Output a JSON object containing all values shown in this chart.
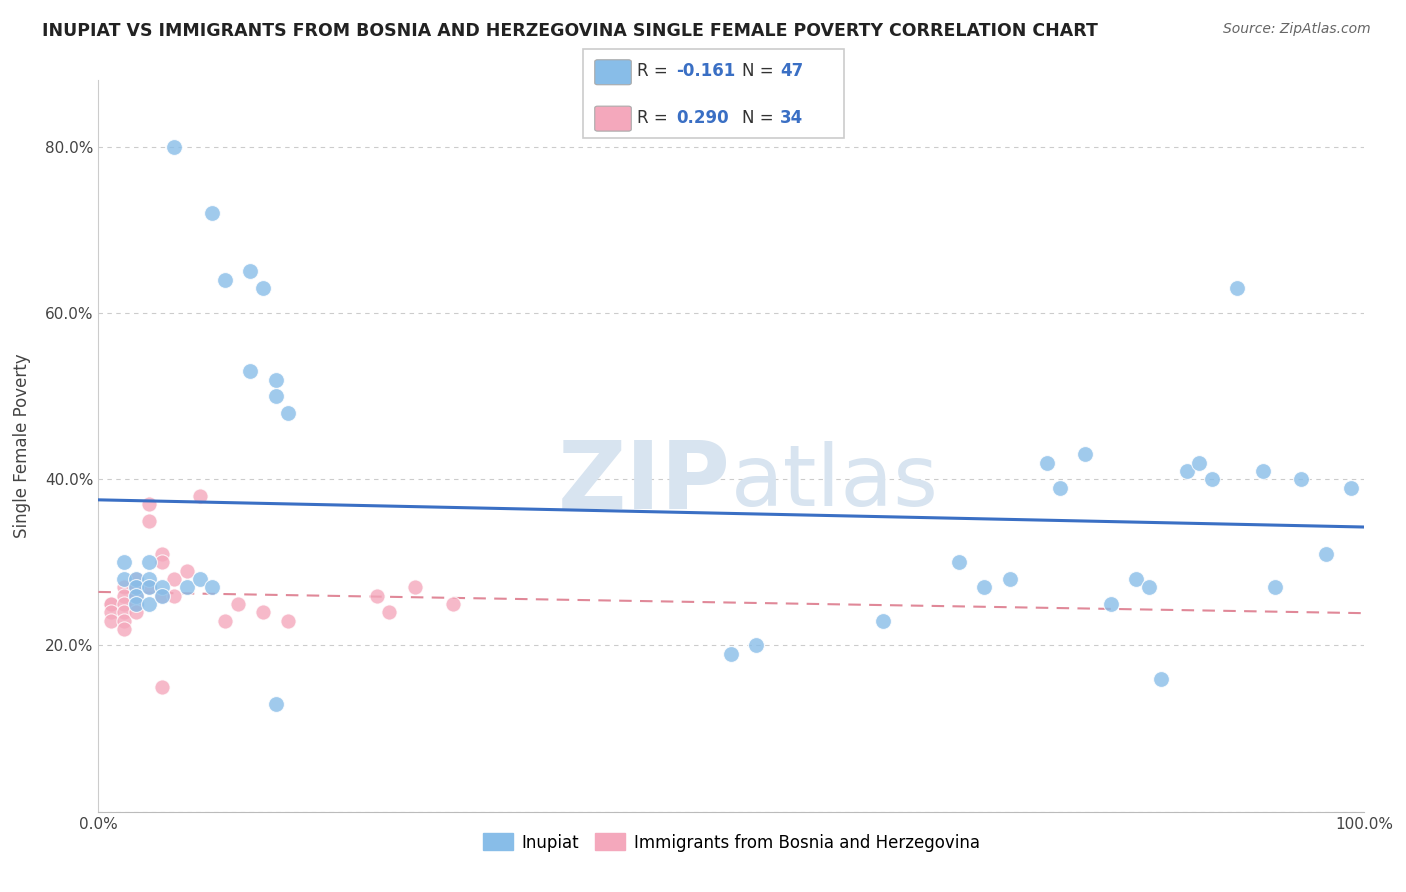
{
  "title": "INUPIAT VS IMMIGRANTS FROM BOSNIA AND HERZEGOVINA SINGLE FEMALE POVERTY CORRELATION CHART",
  "source": "Source: ZipAtlas.com",
  "ylabel": "Single Female Poverty",
  "xlim": [
    0,
    1.0
  ],
  "ylim": [
    0.0,
    0.88
  ],
  "inupiat_color": "#88bde8",
  "bosnia_color": "#f4a8bc",
  "line_inupiat_color": "#3a6fc4",
  "line_bosnia_color": "#e08898",
  "inupiat_x": [
    0.06,
    0.09,
    0.1,
    0.12,
    0.12,
    0.13,
    0.14,
    0.14,
    0.15,
    0.02,
    0.02,
    0.03,
    0.03,
    0.03,
    0.03,
    0.04,
    0.04,
    0.04,
    0.04,
    0.05,
    0.05,
    0.07,
    0.08,
    0.09,
    0.5,
    0.52,
    0.62,
    0.68,
    0.7,
    0.72,
    0.75,
    0.76,
    0.78,
    0.8,
    0.82,
    0.83,
    0.84,
    0.86,
    0.87,
    0.88,
    0.9,
    0.92,
    0.93,
    0.95,
    0.97,
    0.99,
    0.14
  ],
  "inupiat_y": [
    0.8,
    0.72,
    0.64,
    0.65,
    0.53,
    0.63,
    0.52,
    0.5,
    0.48,
    0.3,
    0.28,
    0.28,
    0.27,
    0.26,
    0.25,
    0.3,
    0.28,
    0.27,
    0.25,
    0.27,
    0.26,
    0.27,
    0.28,
    0.27,
    0.19,
    0.2,
    0.23,
    0.3,
    0.27,
    0.28,
    0.42,
    0.39,
    0.43,
    0.25,
    0.28,
    0.27,
    0.16,
    0.41,
    0.42,
    0.4,
    0.63,
    0.41,
    0.27,
    0.4,
    0.31,
    0.39,
    0.13
  ],
  "bosnia_x": [
    0.01,
    0.01,
    0.01,
    0.01,
    0.02,
    0.02,
    0.02,
    0.02,
    0.02,
    0.02,
    0.03,
    0.03,
    0.03,
    0.03,
    0.03,
    0.04,
    0.04,
    0.04,
    0.05,
    0.05,
    0.05,
    0.05,
    0.06,
    0.06,
    0.07,
    0.08,
    0.1,
    0.11,
    0.13,
    0.15,
    0.22,
    0.23,
    0.25,
    0.28
  ],
  "bosnia_y": [
    0.25,
    0.25,
    0.24,
    0.23,
    0.27,
    0.26,
    0.25,
    0.24,
    0.23,
    0.22,
    0.28,
    0.27,
    0.26,
    0.25,
    0.24,
    0.37,
    0.35,
    0.27,
    0.31,
    0.3,
    0.26,
    0.15,
    0.28,
    0.26,
    0.29,
    0.38,
    0.23,
    0.25,
    0.24,
    0.23,
    0.26,
    0.24,
    0.27,
    0.25
  ],
  "legend_r1_val": "-0.161",
  "legend_n1_val": "47",
  "legend_r2_val": "0.290",
  "legend_n2_val": "34",
  "watermark_zip": "ZIP",
  "watermark_atlas": "atlas"
}
